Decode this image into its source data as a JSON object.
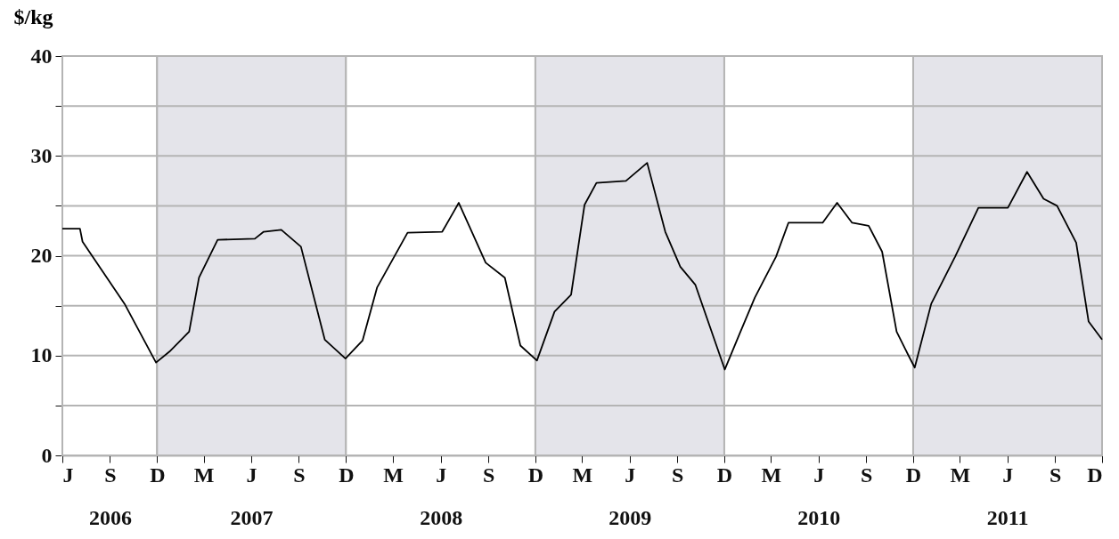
{
  "chart_data": {
    "type": "line",
    "ylabel": "$/kg",
    "x": [
      "2006-06-01",
      "2006-07-05",
      "2006-07-10",
      "2006-09-29",
      "2006-11-29",
      "2006-12-25",
      "2007-02-01",
      "2007-02-20",
      "2007-03-28",
      "2007-06-08",
      "2007-06-25",
      "2007-07-29",
      "2007-09-05",
      "2007-10-21",
      "2007-11-30",
      "2008-01-02",
      "2008-01-30",
      "2008-03-29",
      "2008-06-04",
      "2008-07-06",
      "2008-08-27",
      "2008-10-03",
      "2008-11-02",
      "2008-12-04",
      "2009-01-07",
      "2009-02-08",
      "2009-03-06",
      "2009-03-29",
      "2009-05-25",
      "2009-07-05",
      "2009-08-09",
      "2009-09-07",
      "2009-10-06",
      "2009-12-02",
      "2009-12-30",
      "2010-01-29",
      "2010-03-11",
      "2010-04-04",
      "2010-06-09",
      "2010-07-07",
      "2010-08-05",
      "2010-09-06",
      "2010-10-02",
      "2010-10-30",
      "2010-11-22",
      "2010-12-04",
      "2011-01-05",
      "2011-02-20",
      "2011-04-06",
      "2011-06-02",
      "2011-07-09",
      "2011-08-10",
      "2011-09-05",
      "2011-10-12",
      "2011-11-05",
      "2011-12-01"
    ],
    "series": [
      {
        "color": "#000000",
        "values": [
          22.7,
          22.7,
          21.4,
          15.2,
          9.3,
          10.4,
          12.4,
          17.8,
          21.6,
          21.7,
          22.4,
          22.6,
          20.9,
          11.6,
          9.7,
          11.5,
          16.8,
          22.3,
          22.4,
          25.3,
          19.3,
          17.8,
          11.0,
          9.5,
          14.4,
          16.1,
          25.1,
          27.3,
          27.5,
          29.3,
          22.4,
          18.9,
          17.1,
          8.6,
          12.1,
          15.8,
          19.9,
          23.3,
          23.3,
          25.3,
          23.3,
          23.0,
          20.4,
          12.4,
          10.0,
          8.8,
          15.2,
          19.9,
          24.8,
          24.8,
          28.4,
          25.7,
          25.0,
          21.3,
          13.4,
          11.6
        ]
      }
    ],
    "xlim": [
      "2006-06",
      "2011-12"
    ],
    "xticks": [
      {
        "value": "2006-06",
        "label": "J"
      },
      {
        "value": "2006-09",
        "label": "S\n2006"
      },
      {
        "value": "2006-12",
        "label": "D"
      },
      {
        "value": "2007-03",
        "label": "M"
      },
      {
        "value": "2007-06",
        "label": "J\n2007"
      },
      {
        "value": "2007-09",
        "label": "S"
      },
      {
        "value": "2007-12",
        "label": "D"
      },
      {
        "value": "2008-03",
        "label": "M"
      },
      {
        "value": "2008-06",
        "label": "J\n2008"
      },
      {
        "value": "2008-09",
        "label": "S"
      },
      {
        "value": "2008-12",
        "label": "D"
      },
      {
        "value": "2009-03",
        "label": "M"
      },
      {
        "value": "2009-06",
        "label": "J\n2009"
      },
      {
        "value": "2009-09",
        "label": "S"
      },
      {
        "value": "2009-12",
        "label": "D"
      },
      {
        "value": "2010-03",
        "label": "M"
      },
      {
        "value": "2010-06",
        "label": "J\n2010"
      },
      {
        "value": "2010-09",
        "label": "S"
      },
      {
        "value": "2010-12",
        "label": "D"
      },
      {
        "value": "2011-03",
        "label": "M"
      },
      {
        "value": "2011-06",
        "label": "J\n2011"
      },
      {
        "value": "2011-09",
        "label": "S"
      },
      {
        "value": "2011-12",
        "label": "D"
      }
    ],
    "ylim": [
      0,
      40
    ],
    "yticks": [
      0,
      {
        "value": 5,
        "label": null
      },
      10,
      {
        "value": 15,
        "label": null
      },
      20,
      {
        "value": 25,
        "label": null
      },
      30,
      {
        "value": 35,
        "label": null
      },
      40
    ],
    "grid": "y",
    "bands": [
      {
        "axis": "x",
        "from": "2006-06",
        "to": "2006-12",
        "color": "#ffffff"
      },
      {
        "axis": "x",
        "from": "2006-12",
        "to": "2007-12",
        "color": "#e4e4ea"
      },
      {
        "axis": "x",
        "from": "2007-12",
        "to": "2008-12",
        "color": "#ffffff"
      },
      {
        "axis": "x",
        "from": "2008-12",
        "to": "2009-12",
        "color": "#e4e4ea"
      },
      {
        "axis": "x",
        "from": "2009-12",
        "to": "2010-12",
        "color": "#ffffff"
      },
      {
        "axis": "x",
        "from": "2010-12",
        "to": "2011-12",
        "color": "#e4e4ea"
      }
    ],
    "marker": "none",
    "line_style": "solid"
  }
}
